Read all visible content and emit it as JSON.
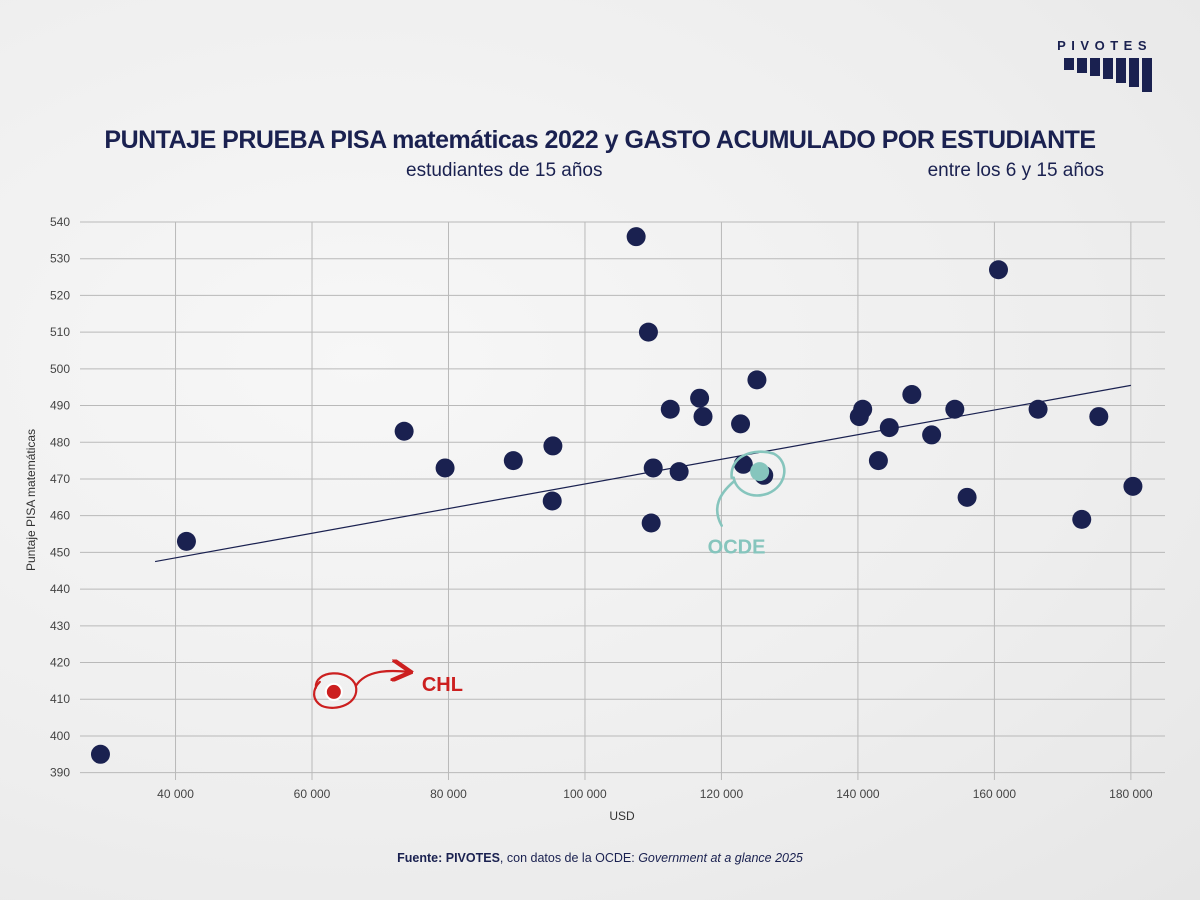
{
  "brand": {
    "name": "PIVOTES"
  },
  "header": {
    "title": "PUNTAJE PRUEBA PISA matemáticas 2022 y GASTO ACUMULADO POR ESTUDIANTE",
    "subtitle_left": "estudiantes de 15 años",
    "subtitle_right": "entre los 6 y 15 años"
  },
  "footer": {
    "label": "Fuente:",
    "brand": "PIVOTES",
    "text": ", con datos de la OCDE: ",
    "publication": "Government at a glance 2025"
  },
  "colors": {
    "navy": "#1a2150",
    "highlight_red": "#cc1f1f",
    "oecd_teal": "#86c5bd"
  },
  "chart_data": {
    "type": "scatter",
    "title": "PUNTAJE PRUEBA PISA matemáticas 2022 y GASTO ACUMULADO POR ESTUDIANTE",
    "xlabel": "USD",
    "ylabel": "Puntaje PISA matemáticas",
    "xlim": [
      26000,
      185000
    ],
    "ylim": [
      388,
      540
    ],
    "xticks": [
      40000,
      60000,
      80000,
      100000,
      120000,
      140000,
      160000,
      180000
    ],
    "xtick_labels": [
      "40 000",
      "60 000",
      "80 000",
      "100 000",
      "120 000",
      "140 000",
      "160 000",
      "180 000"
    ],
    "yticks": [
      390,
      400,
      410,
      420,
      430,
      440,
      450,
      460,
      470,
      480,
      490,
      500,
      510,
      520,
      530,
      540
    ],
    "grid": true,
    "points": [
      {
        "x": 29000,
        "y": 395
      },
      {
        "x": 41600,
        "y": 453
      },
      {
        "x": 73500,
        "y": 483
      },
      {
        "x": 79500,
        "y": 473
      },
      {
        "x": 89500,
        "y": 475
      },
      {
        "x": 95200,
        "y": 464
      },
      {
        "x": 95300,
        "y": 479
      },
      {
        "x": 107500,
        "y": 536
      },
      {
        "x": 109300,
        "y": 510
      },
      {
        "x": 109700,
        "y": 458
      },
      {
        "x": 110000,
        "y": 473
      },
      {
        "x": 112500,
        "y": 489
      },
      {
        "x": 113800,
        "y": 472
      },
      {
        "x": 116800,
        "y": 492
      },
      {
        "x": 117300,
        "y": 487
      },
      {
        "x": 122800,
        "y": 485
      },
      {
        "x": 123200,
        "y": 474
      },
      {
        "x": 125200,
        "y": 497
      },
      {
        "x": 126200,
        "y": 471
      },
      {
        "x": 140200,
        "y": 487
      },
      {
        "x": 140700,
        "y": 489
      },
      {
        "x": 143000,
        "y": 475
      },
      {
        "x": 144600,
        "y": 484
      },
      {
        "x": 147900,
        "y": 493
      },
      {
        "x": 150800,
        "y": 482
      },
      {
        "x": 154200,
        "y": 489
      },
      {
        "x": 156000,
        "y": 465
      },
      {
        "x": 160600,
        "y": 527
      },
      {
        "x": 166400,
        "y": 489
      },
      {
        "x": 172800,
        "y": 459
      },
      {
        "x": 175300,
        "y": 487
      },
      {
        "x": 180300,
        "y": 468
      }
    ],
    "highlights": [
      {
        "label": "CHL",
        "x": 63200,
        "y": 412
      },
      {
        "label": "OCDE",
        "x": 125600,
        "y": 472
      }
    ],
    "trendline": {
      "x1": 37000,
      "y1": 447.5,
      "x2": 180000,
      "y2": 495.5
    }
  }
}
